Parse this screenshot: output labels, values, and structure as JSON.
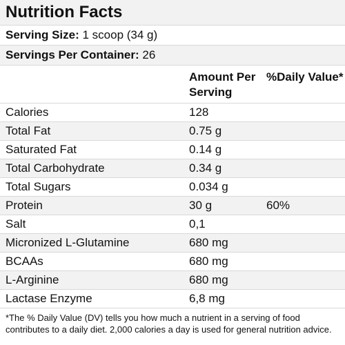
{
  "title": "Nutrition Facts",
  "serving_size": {
    "label": "Serving Size:",
    "value": "1 scoop (34 g)"
  },
  "servings_per_container": {
    "label": "Servings Per Container:",
    "value": "26"
  },
  "columns": {
    "amount": "Amount Per Serving",
    "daily_value": "%Daily Value*"
  },
  "rows": [
    {
      "name": "Calories",
      "amount": "128",
      "dv": ""
    },
    {
      "name": "Total Fat",
      "amount": "0.75 g",
      "dv": ""
    },
    {
      "name": "Saturated Fat",
      "amount": "0.14 g",
      "dv": ""
    },
    {
      "name": "Total Carbohydrate",
      "amount": "0.34 g",
      "dv": ""
    },
    {
      "name": "Total Sugars",
      "amount": "0.034 g",
      "dv": ""
    },
    {
      "name": "Protein",
      "amount": "30 g",
      "dv": "60%"
    },
    {
      "name": "Salt",
      "amount": "0,1",
      "dv": ""
    },
    {
      "name": "Micronized L-Glutamine",
      "amount": "680 mg",
      "dv": ""
    },
    {
      "name": "BCAAs",
      "amount": "680 mg",
      "dv": ""
    },
    {
      "name": "L-Arginine",
      "amount": "680 mg",
      "dv": ""
    },
    {
      "name": "Lactase Enzyme",
      "amount": "6,8 mg",
      "dv": ""
    }
  ],
  "footnote": "*The % Daily Value (DV) tells you how much a nutrient in a serving of food contributes to a daily diet. 2,000 calories a day is used for general nutrition advice."
}
